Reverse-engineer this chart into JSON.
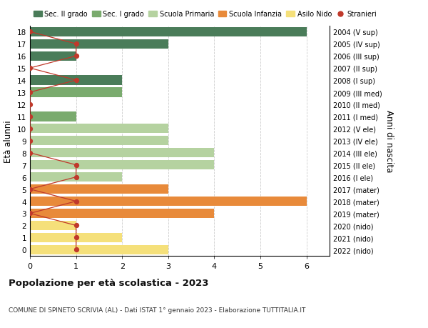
{
  "ages": [
    18,
    17,
    16,
    15,
    14,
    13,
    12,
    11,
    10,
    9,
    8,
    7,
    6,
    5,
    4,
    3,
    2,
    1,
    0
  ],
  "right_labels": [
    "2004 (V sup)",
    "2005 (IV sup)",
    "2006 (III sup)",
    "2007 (II sup)",
    "2008 (I sup)",
    "2009 (III med)",
    "2010 (II med)",
    "2011 (I med)",
    "2012 (V ele)",
    "2013 (IV ele)",
    "2014 (III ele)",
    "2015 (II ele)",
    "2016 (I ele)",
    "2017 (mater)",
    "2018 (mater)",
    "2019 (mater)",
    "2020 (nido)",
    "2021 (nido)",
    "2022 (nido)"
  ],
  "bar_values": [
    6,
    3,
    1,
    0,
    2,
    2,
    0,
    1,
    3,
    3,
    4,
    4,
    2,
    3,
    6,
    4,
    1,
    2,
    3
  ],
  "bar_colors": [
    "#4a7c59",
    "#4a7c59",
    "#4a7c59",
    "#4a7c59",
    "#4a7c59",
    "#7aab6e",
    "#7aab6e",
    "#7aab6e",
    "#b5d2a0",
    "#b5d2a0",
    "#b5d2a0",
    "#b5d2a0",
    "#b5d2a0",
    "#e88a3a",
    "#e88a3a",
    "#e88a3a",
    "#f5e07a",
    "#f5e07a",
    "#f5e07a"
  ],
  "stranieri_values": [
    0,
    1,
    1,
    0,
    1,
    0,
    0,
    0,
    0,
    0,
    0,
    1,
    1,
    0,
    1,
    0,
    1,
    1,
    1
  ],
  "stranieri_color": "#c0392b",
  "legend_labels": [
    "Sec. II grado",
    "Sec. I grado",
    "Scuola Primaria",
    "Scuola Infanzia",
    "Asilo Nido",
    "Stranieri"
  ],
  "legend_colors": [
    "#4a7c59",
    "#7aab6e",
    "#b5d2a0",
    "#e88a3a",
    "#f5e07a",
    "#c0392b"
  ],
  "title": "Popolazione per età scolastica - 2023",
  "subtitle": "COMUNE DI SPINETO SCRIVIA (AL) - Dati ISTAT 1° gennaio 2023 - Elaborazione TUTTITALIA.IT",
  "ylabel_left": "Età alunni",
  "ylabel_right": "Anni di nascita",
  "xlim": [
    0,
    6.5
  ],
  "ylim": [
    -0.5,
    18.5
  ],
  "background_color": "#ffffff",
  "grid_color": "#cccccc"
}
